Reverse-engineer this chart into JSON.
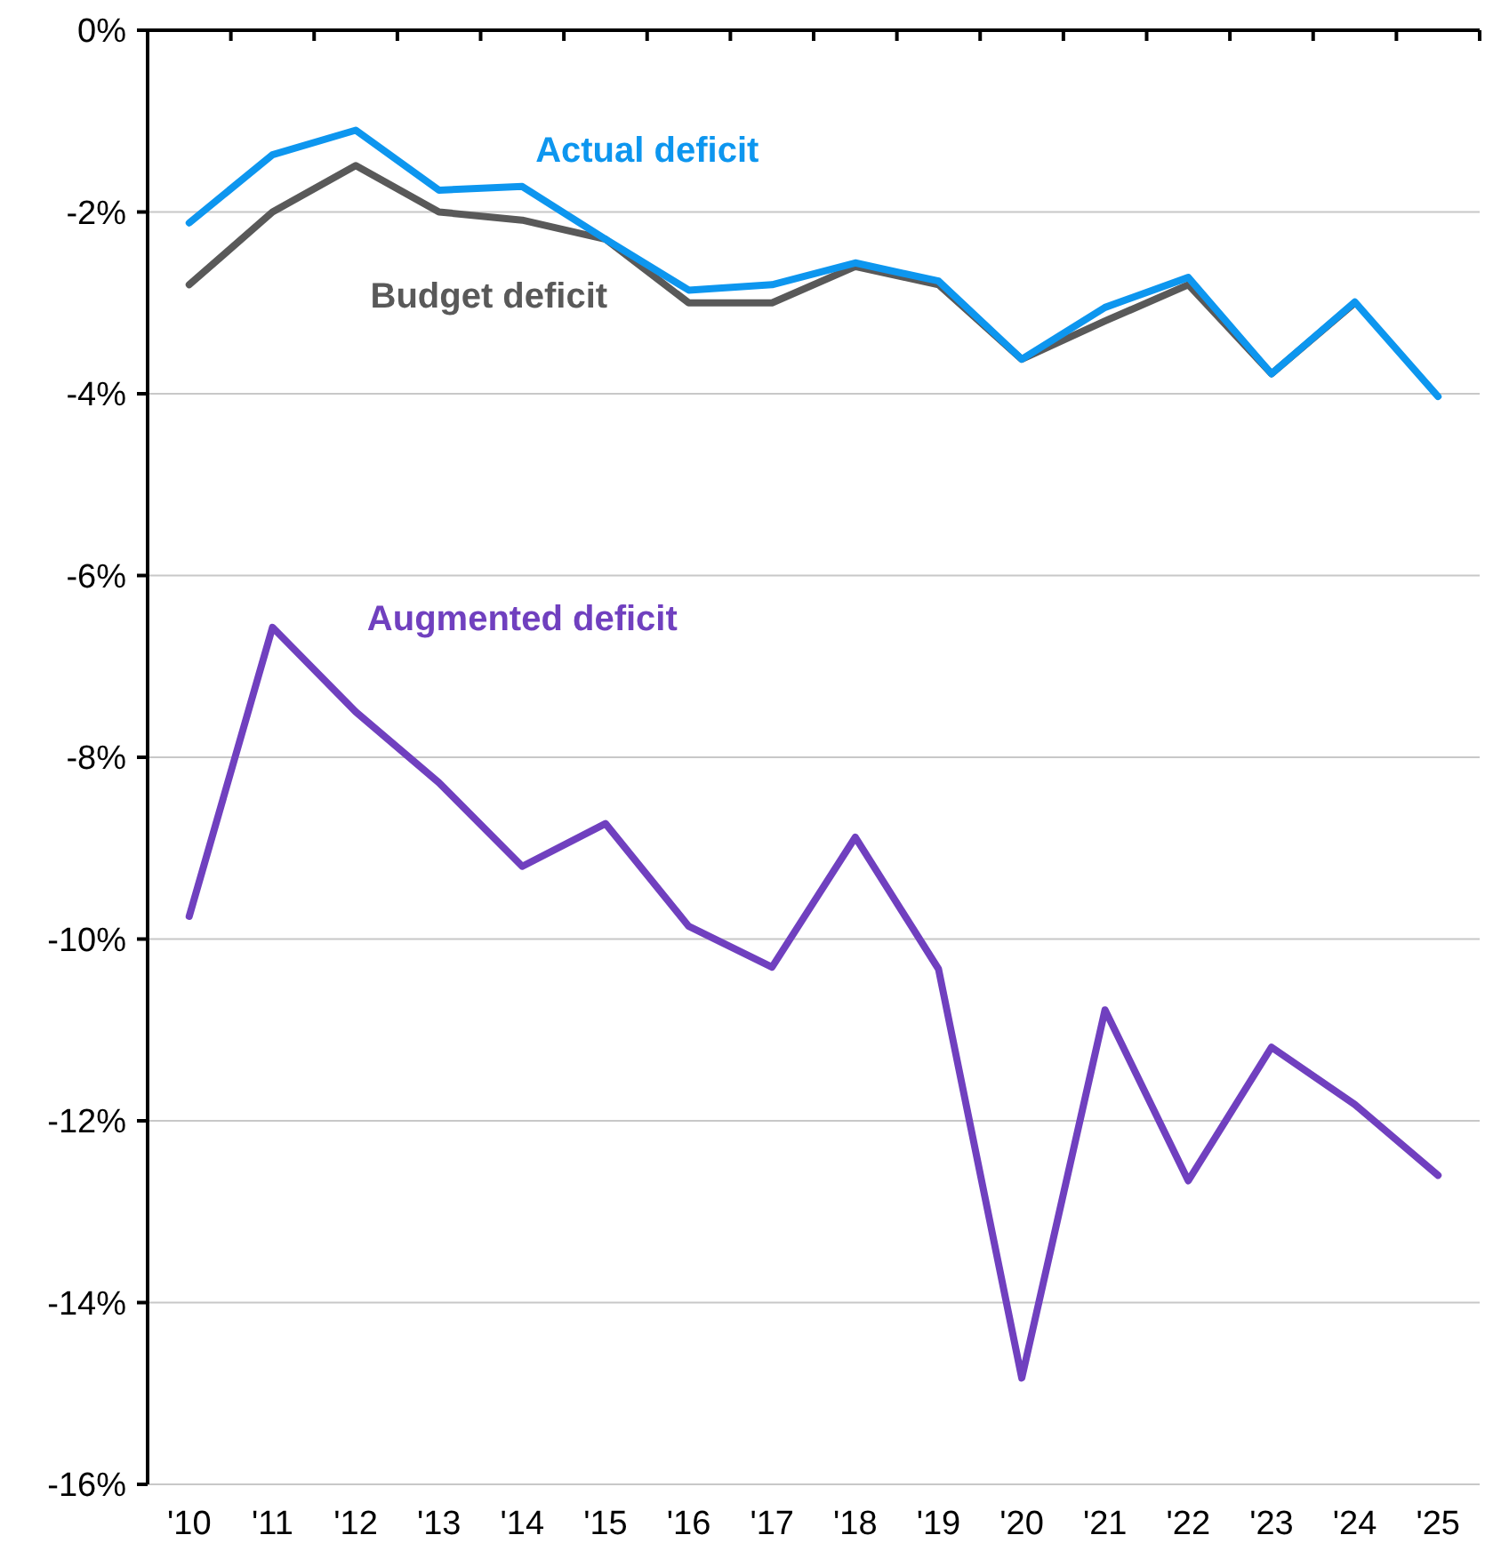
{
  "chart_data": {
    "type": "line",
    "categories": [
      "'10",
      "'11",
      "'12",
      "'13",
      "'14",
      "'15",
      "'16",
      "'17",
      "'18",
      "'19",
      "'20",
      "'21",
      "'22",
      "'23",
      "'24",
      "'25"
    ],
    "series": [
      {
        "name": "Budget deficit",
        "color": "#595959",
        "values": [
          -2.8,
          -2.0,
          -1.49,
          -2.0,
          -2.09,
          -2.3,
          -3.0,
          -3.0,
          -2.6,
          -2.8,
          -3.62,
          -3.2,
          -2.8,
          -3.78,
          -3.0,
          null
        ]
      },
      {
        "name": "Actual deficit",
        "color": "#0d96ef",
        "values": [
          -2.12,
          -1.37,
          -1.1,
          -1.76,
          -1.72,
          -2.3,
          -2.86,
          -2.8,
          -2.56,
          -2.76,
          -3.62,
          -3.05,
          -2.72,
          -3.78,
          -2.99,
          -4.03
        ]
      },
      {
        "name": "Augmented deficit",
        "color": "#7040bf",
        "values": [
          -9.75,
          -6.57,
          -7.5,
          -8.28,
          -9.2,
          -8.73,
          -9.86,
          -10.31,
          -8.88,
          -10.33,
          -14.83,
          -10.78,
          -12.66,
          -11.19,
          -11.82,
          -12.6
        ]
      }
    ],
    "ylim": [
      -16,
      0
    ],
    "yticks": [
      {
        "value": -16,
        "label": "-16%"
      },
      {
        "value": -14,
        "label": "-14%"
      },
      {
        "value": -12,
        "label": "-12%"
      },
      {
        "value": -10,
        "label": "-10%"
      },
      {
        "value": -8,
        "label": "-8%"
      },
      {
        "value": -6,
        "label": "-6%"
      },
      {
        "value": -4,
        "label": "-4%"
      },
      {
        "value": -2,
        "label": "-2%"
      },
      {
        "value": 0,
        "label": "0%"
      }
    ],
    "grid": "y",
    "legend": false,
    "marker": "none",
    "line_style": "solid"
  }
}
